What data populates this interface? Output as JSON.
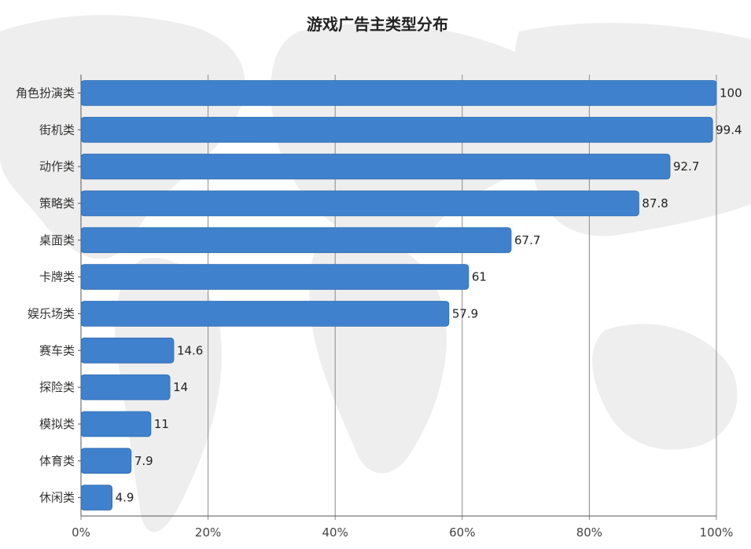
{
  "chart_data": {
    "type": "bar",
    "orientation": "horizontal",
    "title": "游戏广告主类型分布",
    "xlabel": "",
    "ylabel": "",
    "categories": [
      "角色扮演类",
      "街机类",
      "动作类",
      "策略类",
      "桌面类",
      "卡牌类",
      "娱乐场类",
      "赛车类",
      "探险类",
      "模拟类",
      "体育类",
      "休闲类"
    ],
    "values": [
      100,
      99.4,
      92.7,
      87.8,
      67.7,
      61,
      57.9,
      14.6,
      14,
      11,
      7.9,
      4.9
    ],
    "value_labels": [
      "100",
      "99.4",
      "92.7",
      "87.8",
      "67.7",
      "61",
      "57.9",
      "14.6",
      "14",
      "11",
      "7.9",
      "4.9"
    ],
    "xlim": [
      0,
      100
    ],
    "x_ticks": [
      0,
      20,
      40,
      60,
      80,
      100
    ],
    "x_tick_labels": [
      "0%",
      "20%",
      "40%",
      "60%",
      "80%",
      "100%"
    ],
    "grid": true,
    "legend": "none",
    "bar_color": "#3f81cc"
  }
}
